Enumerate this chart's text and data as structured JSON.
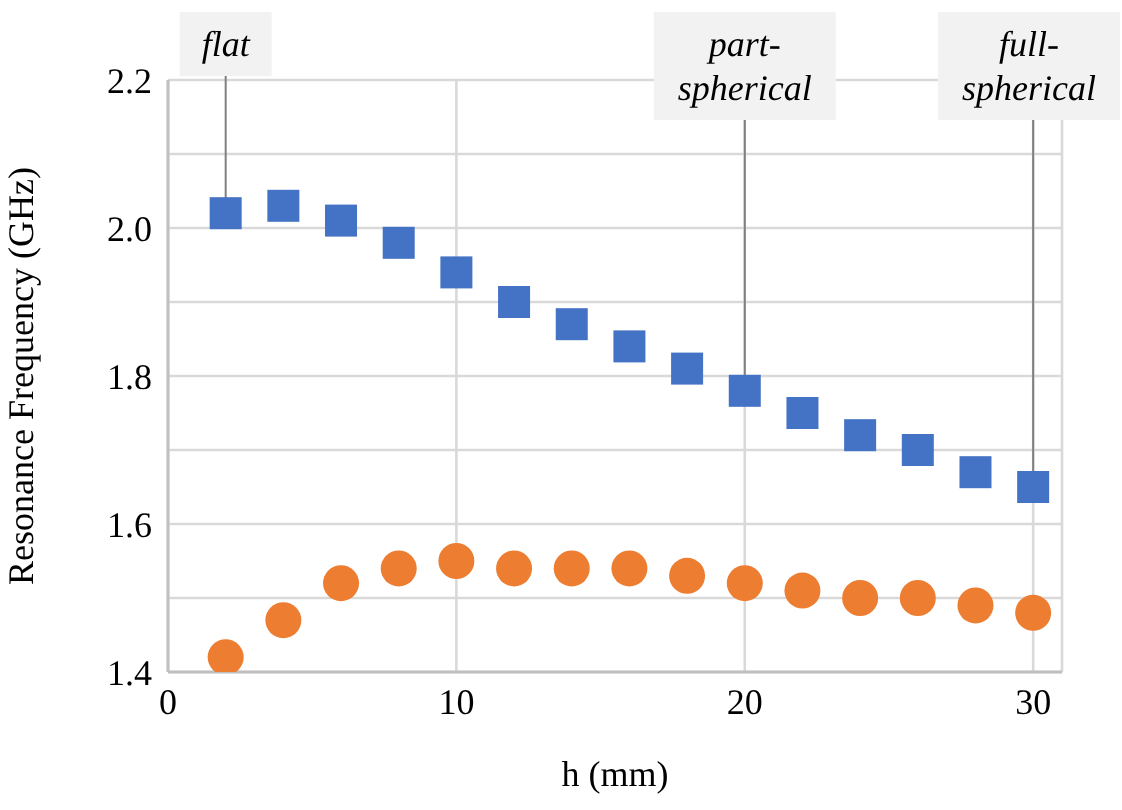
{
  "chart_data": {
    "type": "scatter",
    "xlabel": "h (mm)",
    "ylabel": "Resonance Frequency (GHz)",
    "x": [
      2,
      4,
      6,
      8,
      10,
      12,
      14,
      16,
      18,
      20,
      22,
      24,
      26,
      28,
      30
    ],
    "series": [
      {
        "color": "#4472c4",
        "marker": "square",
        "values": [
          2.02,
          2.03,
          2.01,
          1.98,
          1.94,
          1.9,
          1.87,
          1.84,
          1.81,
          1.78,
          1.75,
          1.72,
          1.7,
          1.67,
          1.65
        ]
      },
      {
        "color": "#ed7d31",
        "marker": "circle",
        "values": [
          1.42,
          1.47,
          1.52,
          1.54,
          1.55,
          1.54,
          1.54,
          1.54,
          1.53,
          1.52,
          1.51,
          1.5,
          1.5,
          1.49,
          1.48
        ]
      }
    ],
    "xlim": [
      0,
      31
    ],
    "xticks": [
      0,
      10,
      20,
      30
    ],
    "ylim": [
      1.4,
      2.2
    ],
    "yticks": [
      1.4,
      {
        "value": 1.5,
        "label": null
      },
      1.6,
      {
        "value": 1.7,
        "label": null
      },
      1.8,
      {
        "value": 1.9,
        "label": null
      },
      {
        "value": 2.0,
        "label": "2.0"
      },
      {
        "value": 2.1,
        "label": null
      },
      2.2
    ],
    "grid": true,
    "legend": false,
    "annotations": [
      {
        "text": "flat",
        "x": 2,
        "y": 2.02
      },
      {
        "text": "part-spherical",
        "x": 20,
        "y": 1.78
      },
      {
        "text": "full-spherical",
        "x": 30,
        "y": 1.65
      }
    ]
  }
}
